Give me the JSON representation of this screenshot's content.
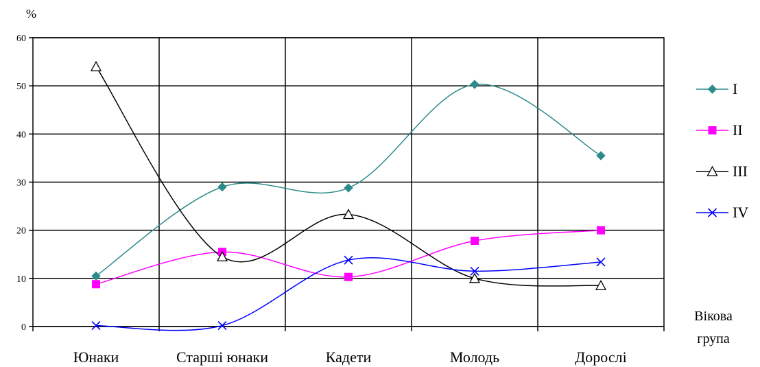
{
  "chart_data": {
    "type": "line",
    "ylabel": "%",
    "xlabel_line1": "Вікова",
    "xlabel_line2": "група",
    "categories": [
      "Юнаки",
      "Старші юнаки",
      "Кадети",
      "Молодь",
      "Дорослі"
    ],
    "ylim": [
      0,
      60
    ],
    "yticks": [
      0,
      10,
      20,
      30,
      40,
      50,
      60
    ],
    "grid": true,
    "legend_position": "right",
    "series": [
      {
        "name": "I",
        "values": [
          10.5,
          29,
          28.8,
          50.3,
          35.5
        ],
        "color": "#2e8b8b",
        "marker": "diamond"
      },
      {
        "name": "II",
        "values": [
          8.8,
          15.5,
          10.3,
          17.8,
          20
        ],
        "color": "#ff00ff",
        "marker": "square"
      },
      {
        "name": "III",
        "values": [
          54,
          14.5,
          23.3,
          10,
          8.5
        ],
        "color": "#000000",
        "marker": "triangle"
      },
      {
        "name": "IV",
        "values": [
          0.2,
          0.2,
          13.8,
          11.5,
          13.4
        ],
        "color": "#0000ff",
        "marker": "x"
      }
    ]
  }
}
